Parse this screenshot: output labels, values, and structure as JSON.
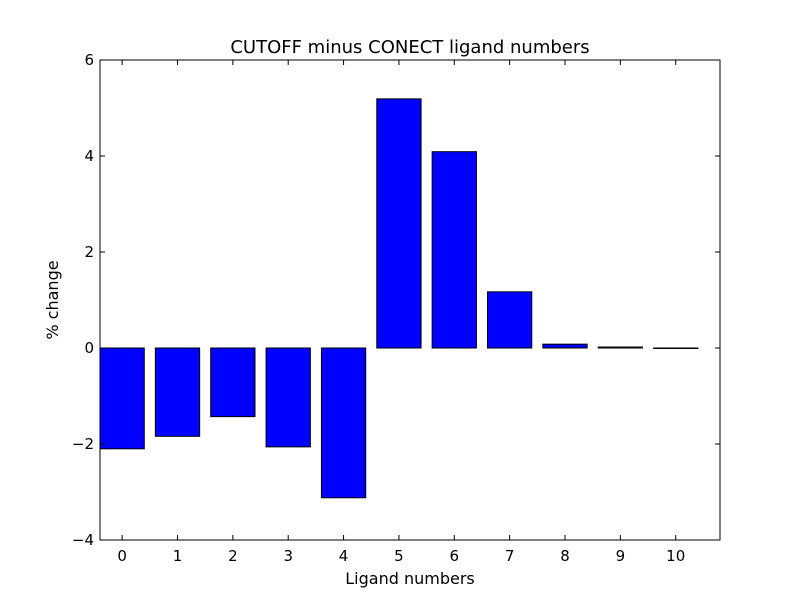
{
  "chart_data": {
    "type": "bar",
    "title": "CUTOFF minus CONECT ligand numbers",
    "xlabel": "Ligand numbers",
    "ylabel": "% change",
    "categories": [
      "0",
      "1",
      "2",
      "3",
      "4",
      "5",
      "6",
      "7",
      "8",
      "9",
      "10"
    ],
    "values": [
      -2.1,
      -1.84,
      -1.43,
      -2.06,
      -3.12,
      5.19,
      4.09,
      1.17,
      0.08,
      0.02,
      0.0
    ],
    "ylim": [
      -4,
      6
    ],
    "yticks": [
      -4,
      -2,
      0,
      2,
      4,
      6
    ],
    "ytick_labels": [
      "−4",
      "−2",
      "0",
      "2",
      "4",
      "6"
    ],
    "grid": false,
    "bar_color": "#0000ff",
    "edge_color": "#000000"
  }
}
